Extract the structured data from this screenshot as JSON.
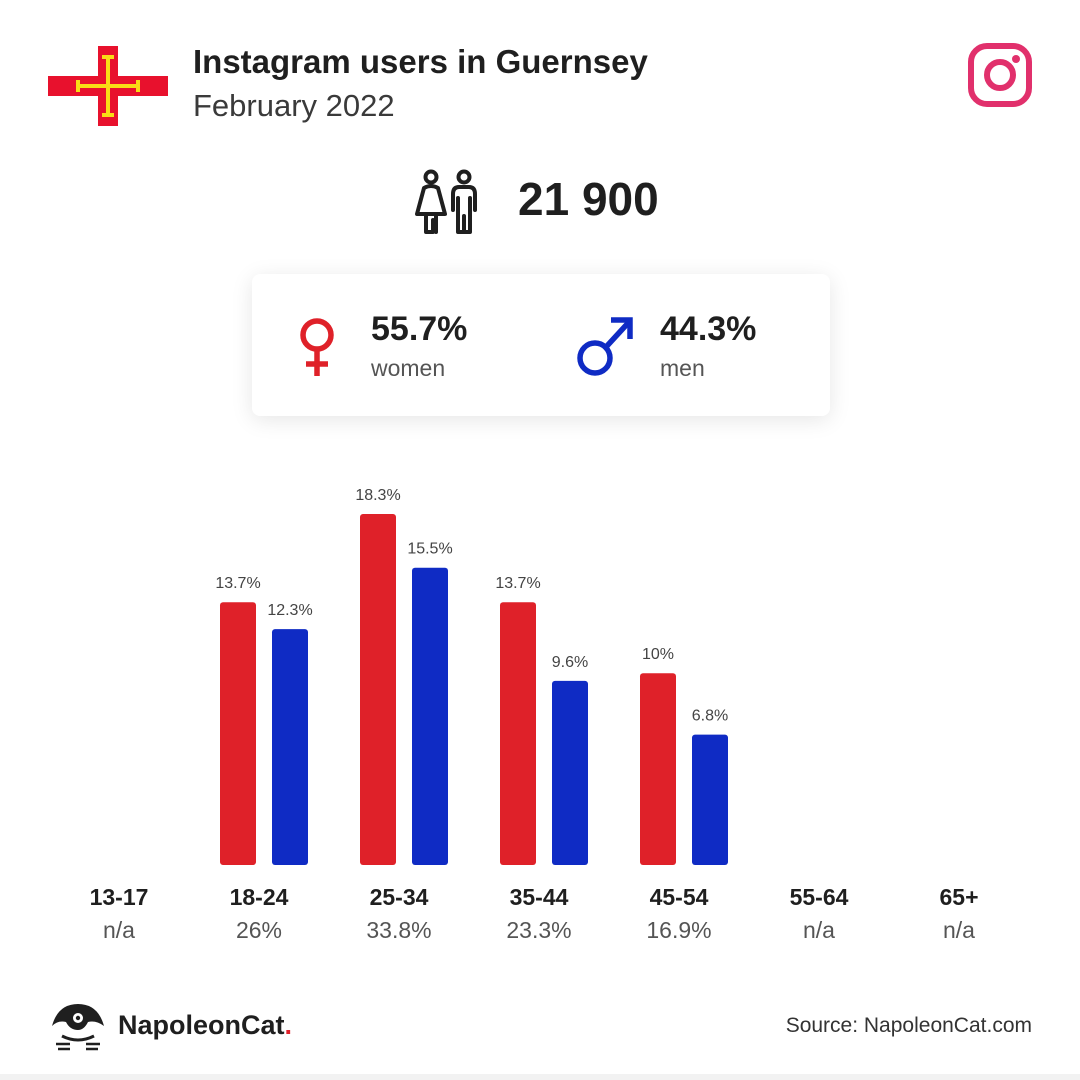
{
  "header": {
    "title": "Instagram users in Guernsey",
    "subtitle": "February 2022"
  },
  "icons": {
    "flag": "guernsey-flag-icon",
    "platform": "instagram-icon",
    "users": "people-icon",
    "women": "female-symbol-icon",
    "men": "male-symbol-icon",
    "brand": "napoleoncat-logo"
  },
  "total_users": "21 900",
  "gender": {
    "women": {
      "pct": "55.7%",
      "label": "women"
    },
    "men": {
      "pct": "44.3%",
      "label": "men"
    }
  },
  "colors": {
    "women": "#df2129",
    "men": "#0f2bc4",
    "instagram": "#e1306c",
    "text": "#1f1f1f",
    "flag_red": "#e8112d",
    "flag_yellow": "#f9dd16"
  },
  "chart_data": {
    "type": "bar",
    "categories": [
      "13-17",
      "18-24",
      "25-34",
      "35-44",
      "45-54",
      "55-64",
      "65+"
    ],
    "category_totals": [
      "n/a",
      "26%",
      "33.8%",
      "23.3%",
      "16.9%",
      "n/a",
      "n/a"
    ],
    "series": [
      {
        "name": "women",
        "values": [
          null,
          13.7,
          18.3,
          13.7,
          10,
          null,
          null
        ],
        "labels": [
          "",
          "13.7%",
          "18.3%",
          "13.7%",
          "10%",
          "",
          ""
        ]
      },
      {
        "name": "men",
        "values": [
          null,
          12.3,
          15.5,
          9.6,
          6.8,
          null,
          null
        ],
        "labels": [
          "",
          "12.3%",
          "15.5%",
          "9.6%",
          "6.8%",
          "",
          ""
        ]
      }
    ]
  },
  "footer": {
    "brand": "NapoleonCat",
    "brand_dot": ".",
    "source": "Source: NapoleonCat.com"
  }
}
